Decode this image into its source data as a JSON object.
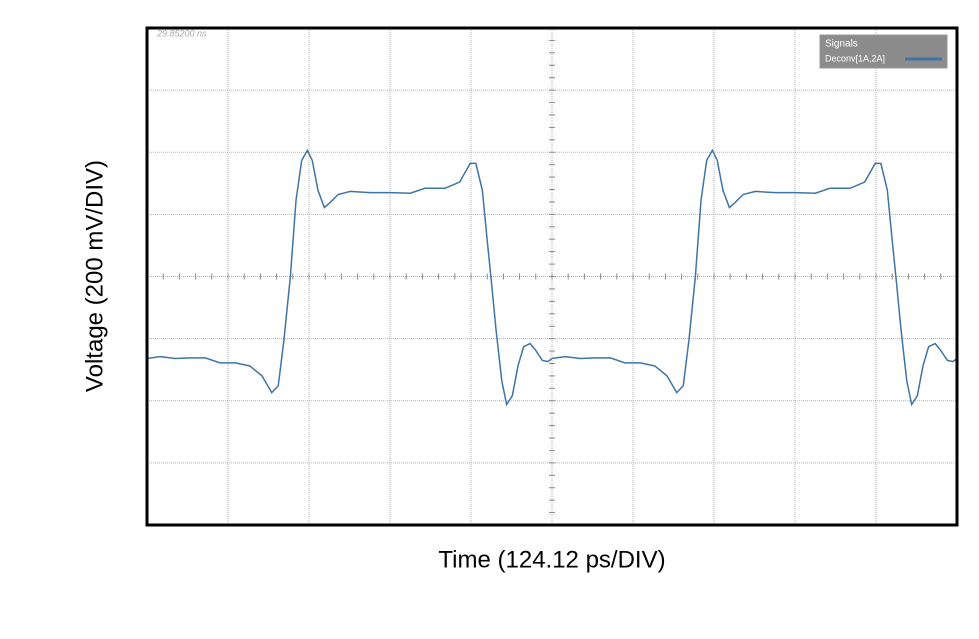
{
  "chart_data": {
    "type": "line",
    "xlabel": "Time (124.12 ps/DIV)",
    "ylabel": "Voltage (200 mV/DIV)",
    "corner_label": "29.85200 ns",
    "legend_title": "Signals",
    "legend": "top-right",
    "grid": true,
    "xlim": [
      0,
      10
    ],
    "ylim": [
      -4,
      4
    ],
    "xticks": [
      0,
      1,
      2,
      3,
      4,
      5,
      6,
      7,
      8,
      9,
      10
    ],
    "yticks": [
      -4,
      -3,
      -2,
      -1,
      0,
      1,
      2,
      3,
      4
    ],
    "x": [
      0,
      0.16,
      0.35,
      0.53,
      0.72,
      0.9,
      1.09,
      1.27,
      1.42,
      1.54,
      1.62,
      1.69,
      1.77,
      1.84,
      1.91,
      1.98,
      2.04,
      2.11,
      2.19,
      2.26,
      2.36,
      2.51,
      2.75,
      3.0,
      3.25,
      3.43,
      3.68,
      3.86,
      3.99,
      4.06,
      4.14,
      4.2,
      4.25,
      4.31,
      4.38,
      4.44,
      4.51,
      4.58,
      4.65,
      4.73,
      4.8,
      4.88,
      4.95,
      5,
      5.16,
      5.35,
      5.53,
      5.72,
      5.9,
      6.09,
      6.27,
      6.42,
      6.54,
      6.62,
      6.69,
      6.77,
      6.84,
      6.91,
      6.98,
      7.04,
      7.11,
      7.19,
      7.26,
      7.36,
      7.51,
      7.75,
      8.0,
      8.25,
      8.43,
      8.68,
      8.86,
      8.99,
      9.06,
      9.14,
      9.2,
      9.25,
      9.31,
      9.38,
      9.44,
      9.51,
      9.58,
      9.65,
      9.73,
      9.8,
      9.88,
      9.95,
      10
    ],
    "series": [
      {
        "name": "Deconv[1A,2A]",
        "color": "#3f74a6",
        "values": [
          -1.32,
          -1.29,
          -1.32,
          -1.31,
          -1.31,
          -1.39,
          -1.39,
          -1.44,
          -1.6,
          -1.87,
          -1.76,
          -1.03,
          0,
          1.23,
          1.87,
          2.03,
          1.87,
          1.39,
          1.11,
          1.19,
          1.32,
          1.37,
          1.35,
          1.35,
          1.34,
          1.42,
          1.42,
          1.52,
          1.82,
          1.82,
          1.39,
          0.58,
          -0.06,
          -0.87,
          -1.68,
          -2.06,
          -1.92,
          -1.44,
          -1.13,
          -1.08,
          -1.19,
          -1.35,
          -1.37,
          -1.32,
          -1.29,
          -1.32,
          -1.31,
          -1.31,
          -1.39,
          -1.39,
          -1.44,
          -1.6,
          -1.87,
          -1.76,
          -1.03,
          0,
          1.23,
          1.87,
          2.03,
          1.87,
          1.39,
          1.11,
          1.19,
          1.32,
          1.37,
          1.35,
          1.35,
          1.34,
          1.42,
          1.42,
          1.52,
          1.82,
          1.82,
          1.39,
          0.58,
          -0.06,
          -0.87,
          -1.68,
          -2.06,
          -1.92,
          -1.44,
          -1.13,
          -1.08,
          -1.19,
          -1.35,
          -1.37,
          -1.32
        ]
      }
    ]
  }
}
